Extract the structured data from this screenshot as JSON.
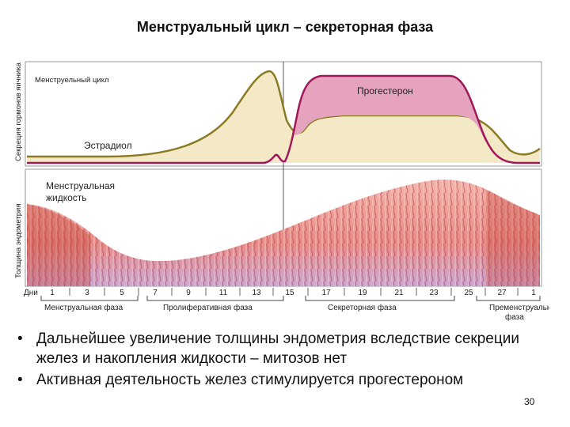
{
  "slide": {
    "title": "Менструальный цикл – секреторная фаза",
    "page_number": "30"
  },
  "diagram": {
    "y_labels": {
      "hormones": "Секреция гормонов яичника",
      "endometrium": "Толщина эндометрия"
    },
    "labels": {
      "cycle": "Менструельный цикл",
      "estradiol": "Эстрадиол",
      "progesterone": "Прогестерон",
      "menstrual_fluid_1": "Менструальная",
      "menstrual_fluid_2": "жидкость",
      "days": "Дни"
    },
    "day_ticks": [
      "1",
      "3",
      "5",
      "7",
      "9",
      "11",
      "13",
      "15",
      "17",
      "19",
      "21",
      "23",
      "25",
      "27",
      "1"
    ],
    "phases": [
      "Менструальная фаза",
      "Пролиферативная фаза",
      "Секреторная фаза",
      "Прeменструальная",
      "фаза"
    ],
    "colors": {
      "estradiol_line": "#8a7a22",
      "estradiol_fill": "#f4e9c6",
      "progesterone_line": "#a0185a",
      "progesterone_fill": "#e5a3bd",
      "tissue": "#e98b86"
    }
  },
  "bullets": [
    "Дальнейшее увеличение толщины эндометрия вследствие секреции желез и накопления жидкости – митозов нет",
    "Активная деятельность желез стимулируется прогестероном"
  ]
}
